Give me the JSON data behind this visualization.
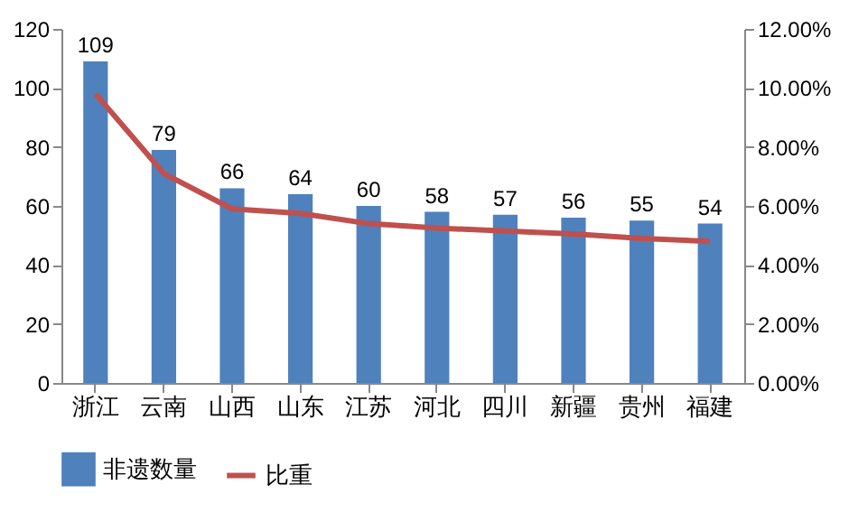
{
  "chart_data": {
    "type": "bar",
    "categories": [
      "浙江",
      "云南",
      "山西",
      "山东",
      "江苏",
      "河北",
      "四川",
      "新疆",
      "贵州",
      "福建"
    ],
    "series": [
      {
        "name": "非遗数量",
        "color": "#4f81bd",
        "values": [
          109,
          79,
          66,
          64,
          60,
          58,
          57,
          56,
          55,
          54
        ],
        "value_labels": [
          "109",
          "79",
          "66",
          "64",
          "60",
          "58",
          "57",
          "56",
          "55",
          "54"
        ]
      },
      {
        "name": "比重",
        "type": "line",
        "axis": "y2",
        "color": "#c0504d",
        "values": [
          9.8,
          7.1,
          5.9,
          5.75,
          5.4,
          5.25,
          5.15,
          5.05,
          4.9,
          4.8
        ]
      }
    ],
    "ylim": [
      0,
      120
    ],
    "yticks": [
      0,
      20,
      40,
      60,
      80,
      100,
      120
    ],
    "y2lim": [
      0,
      12
    ],
    "y2ticks": [
      {
        "value": 0,
        "label": "0.00%"
      },
      {
        "value": 2,
        "label": "2.00%"
      },
      {
        "value": 4,
        "label": "4.00%"
      },
      {
        "value": 6,
        "label": "6.00%"
      },
      {
        "value": 8,
        "label": "8.00%"
      },
      {
        "value": 10,
        "label": "10.00%"
      },
      {
        "value": 12,
        "label": "12.00%"
      }
    ],
    "legend": "bottom",
    "grid": false,
    "marker": "none",
    "line_style": "solid"
  }
}
